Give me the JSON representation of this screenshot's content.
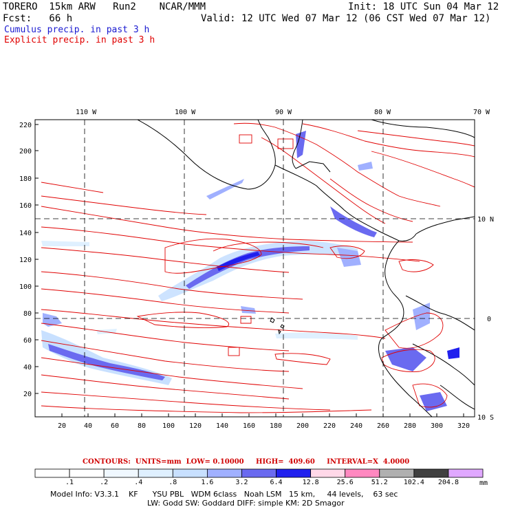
{
  "header": {
    "model_name": "TORERO  15km ARW   Run2    NCAR/MMM",
    "init": "Init: 18 UTC Sun 04 Mar 12",
    "fcst": "Fcst:   66 h",
    "valid": "Valid: 12 UTC Wed 07 Mar 12 (06 CST Wed 07 Mar 12)",
    "cumulus_label": "Cumulus precip. in past 3 h",
    "explicit_label": "Explicit precip. in past 3 h"
  },
  "colors": {
    "cumulus": "#1a1ad0",
    "explicit": "#e00000"
  },
  "map": {
    "top_lon_labels": [
      "110 W",
      "100 W",
      "90 W",
      "80 W",
      "70 W"
    ],
    "right_lat_labels": [
      "10 N",
      "0",
      "10 S"
    ],
    "left_ticks": [
      "220",
      "200",
      "180",
      "160",
      "140",
      "120",
      "100",
      "80",
      "60",
      "40",
      "20"
    ],
    "bottom_ticks": [
      "20",
      "40",
      "60",
      "80",
      "100",
      "120",
      "140",
      "160",
      "180",
      "200",
      "220",
      "240",
      "260",
      "280",
      "300",
      "320"
    ]
  },
  "contours_info": "CONTOURS:  UNITS=mm  LOW= 0.10000     HIGH=  409.60     INTERVAL=X  4.0000",
  "colorbar": {
    "labels": [
      ".1",
      ".2",
      ".4",
      ".8",
      "1.6",
      "3.2",
      "6.4",
      "12.8",
      "25.6",
      "51.2",
      "102.4",
      "204.8"
    ],
    "colors": [
      "#ffffff",
      "#ffffff",
      "#f0f8ff",
      "#dff0ff",
      "#c8e0ff",
      "#a0b0ff",
      "#6a6af0",
      "#2020ee",
      "#ffd8e8",
      "#ff88c0",
      "#b0b0b0",
      "#404040",
      "#e0a8ff"
    ],
    "unit": "mm"
  },
  "model_info": {
    "line1": "Model Info: V3.3.1    KF      YSU PBL   WDM 6class   Noah LSM   15 km,     44 levels,    63 sec",
    "line2": "LW: Godd SW: Goddard DIFF: simple KM: 2D Smagor"
  }
}
